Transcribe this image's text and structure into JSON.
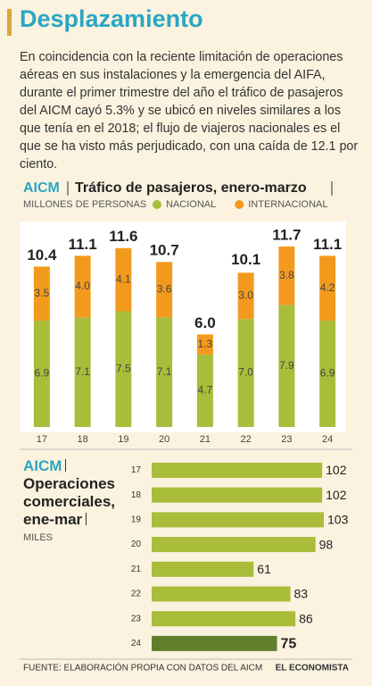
{
  "header": {
    "title": "Desplazamiento"
  },
  "body": {
    "text": "En coincidencia con la reciente limitación de operaciones aéreas en sus instalaciones y la emergencia del AIFA, durante el primer trimestre del año el tráfico de pasajeros del AICM cayó 5.3% y se ubicó en niveles similares a los que tenía en el 2018; el flujo de viajeros nacionales es el que se ha visto más perjudicado, con una caída de 12.1 por ciento."
  },
  "chart_data": [
    {
      "type": "stacked_bar",
      "title": "AICM",
      "subtitle": "Tráfico de pasajeros, enero-marzo",
      "units": "MILLONES DE PERSONAS",
      "categories": [
        "17",
        "18",
        "19",
        "20",
        "21",
        "22",
        "23",
        "24"
      ],
      "series": [
        {
          "name": "NACIONAL",
          "color": "#a9bd3a",
          "values": [
            6.9,
            7.1,
            7.5,
            7.1,
            4.7,
            7.0,
            7.9,
            6.9
          ],
          "value_labels": [
            "6.9",
            "7.1",
            "7.5",
            "7.1",
            "4.7",
            "7.0",
            "7.9",
            "6.9"
          ]
        },
        {
          "name": "INTERNACIONAL",
          "color": "#f39a1e",
          "values": [
            3.5,
            4.0,
            4.1,
            3.6,
            1.3,
            3.0,
            3.8,
            4.2
          ],
          "value_labels": [
            "3.5",
            "4.0",
            "4.1",
            "3.6",
            "1.3",
            "3.0",
            "3.8",
            "4.2"
          ]
        }
      ],
      "totals": {
        "values": [
          10.4,
          11.1,
          11.6,
          10.7,
          6.0,
          10.1,
          11.7,
          11.1
        ],
        "value_labels": [
          "10.4",
          "11.1",
          "11.6",
          "10.7",
          "6.0",
          "10.1",
          "11.7",
          "11.1"
        ]
      }
    },
    {
      "type": "hbar",
      "title": "AICM",
      "subtitle": "Operaciones comerciales, ene-mar",
      "units": "MILES",
      "categories": [
        "17",
        "18",
        "19",
        "20",
        "21",
        "22",
        "23",
        "24"
      ],
      "values": [
        102,
        102,
        103,
        98,
        61,
        83,
        86,
        75
      ],
      "colors": [
        "#a9bd3a",
        "#a9bd3a",
        "#a9bd3a",
        "#a9bd3a",
        "#a9bd3a",
        "#a9bd3a",
        "#a9bd3a",
        "#5f7f2c"
      ]
    }
  ],
  "footer": {
    "source": "FUENTE: ELABORACIÓN PROPIA CON DATOS DEL AICM",
    "logo": "EL ECONOMISTA"
  }
}
